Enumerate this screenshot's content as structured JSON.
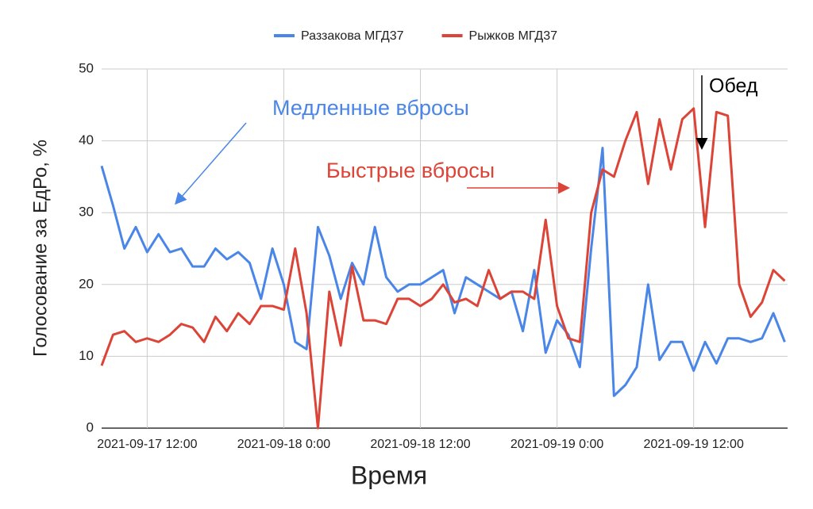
{
  "chart_data": {
    "type": "line",
    "legend": "top",
    "xlabel": "Время",
    "ylabel": "Голосование за ЕдРо, %",
    "annotations": [
      "Медленные вбросы",
      "Быстрые вбросы",
      "Обед"
    ],
    "xlim": [
      "2021-09-17 08:00",
      "2021-09-19 20:15"
    ],
    "xticks": [
      "2021-09-17 12:00",
      "2021-09-18 0:00",
      "2021-09-18 12:00",
      "2021-09-19 0:00",
      "2021-09-19 12:00"
    ],
    "ylim": [
      0,
      50
    ],
    "yticks": [
      0,
      10,
      20,
      30,
      40,
      50
    ],
    "grid": true,
    "x": [
      "2021-09-17 08:00",
      "2021-09-17 09:00",
      "2021-09-17 10:00",
      "2021-09-17 11:00",
      "2021-09-17 12:00",
      "2021-09-17 13:00",
      "2021-09-17 14:00",
      "2021-09-17 15:00",
      "2021-09-17 16:00",
      "2021-09-17 17:00",
      "2021-09-17 18:00",
      "2021-09-17 19:00",
      "2021-09-17 20:00",
      "2021-09-17 21:00",
      "2021-09-17 22:00",
      "2021-09-17 23:00",
      "2021-09-18 00:00",
      "2021-09-18 01:00",
      "2021-09-18 02:00",
      "2021-09-18 03:00",
      "2021-09-18 04:00",
      "2021-09-18 05:00",
      "2021-09-18 06:00",
      "2021-09-18 07:00",
      "2021-09-18 08:00",
      "2021-09-18 09:00",
      "2021-09-18 10:00",
      "2021-09-18 11:00",
      "2021-09-18 12:00",
      "2021-09-18 13:00",
      "2021-09-18 14:00",
      "2021-09-18 15:00",
      "2021-09-18 16:00",
      "2021-09-18 17:00",
      "2021-09-18 18:00",
      "2021-09-18 19:00",
      "2021-09-18 20:00",
      "2021-09-18 21:00",
      "2021-09-18 22:00",
      "2021-09-18 23:00",
      "2021-09-19 00:00",
      "2021-09-19 01:00",
      "2021-09-19 02:00",
      "2021-09-19 03:00",
      "2021-09-19 04:00",
      "2021-09-19 05:00",
      "2021-09-19 06:00",
      "2021-09-19 07:00",
      "2021-09-19 08:00",
      "2021-09-19 09:00",
      "2021-09-19 10:00",
      "2021-09-19 11:00",
      "2021-09-19 12:00",
      "2021-09-19 13:00",
      "2021-09-19 14:00",
      "2021-09-19 15:00",
      "2021-09-19 16:00",
      "2021-09-19 17:00",
      "2021-09-19 18:00",
      "2021-09-19 19:00",
      "2021-09-19 20:00"
    ],
    "series": [
      {
        "name": "Раззакова МГД37",
        "color": "#4a86e8",
        "values": [
          36.5,
          31,
          25,
          28,
          24.5,
          27,
          24.5,
          25,
          22.5,
          22.5,
          25,
          23.5,
          24.5,
          23,
          18,
          25,
          20,
          12,
          11,
          28,
          24,
          18,
          23,
          20,
          28,
          21,
          19,
          20,
          20,
          21,
          22,
          16,
          21,
          20,
          19,
          18,
          19,
          13.5,
          22,
          10.5,
          15,
          13,
          8.5,
          25,
          39,
          4.5,
          6,
          8.5,
          20,
          9.5,
          12,
          12,
          8,
          12,
          9,
          12.5,
          12.5,
          12,
          12.5,
          16,
          12
        ]
      },
      {
        "name": "Рыжков МГД37",
        "color": "#db4437",
        "values": [
          8.7,
          13,
          13.5,
          12,
          12.5,
          12,
          13,
          14.5,
          14,
          12,
          15.5,
          13.5,
          16,
          14.5,
          17,
          17,
          16.5,
          25,
          16,
          0,
          19,
          11.5,
          22.5,
          15,
          15,
          14.5,
          18,
          18,
          17,
          18,
          20,
          17.5,
          18,
          17,
          22,
          18,
          19,
          19,
          18,
          29,
          17,
          12.5,
          12,
          30,
          36,
          35,
          40,
          44,
          34,
          43,
          36,
          43,
          44.5,
          28,
          44,
          43.5,
          20,
          15.5,
          17.5,
          22,
          20.5
        ]
      }
    ]
  }
}
